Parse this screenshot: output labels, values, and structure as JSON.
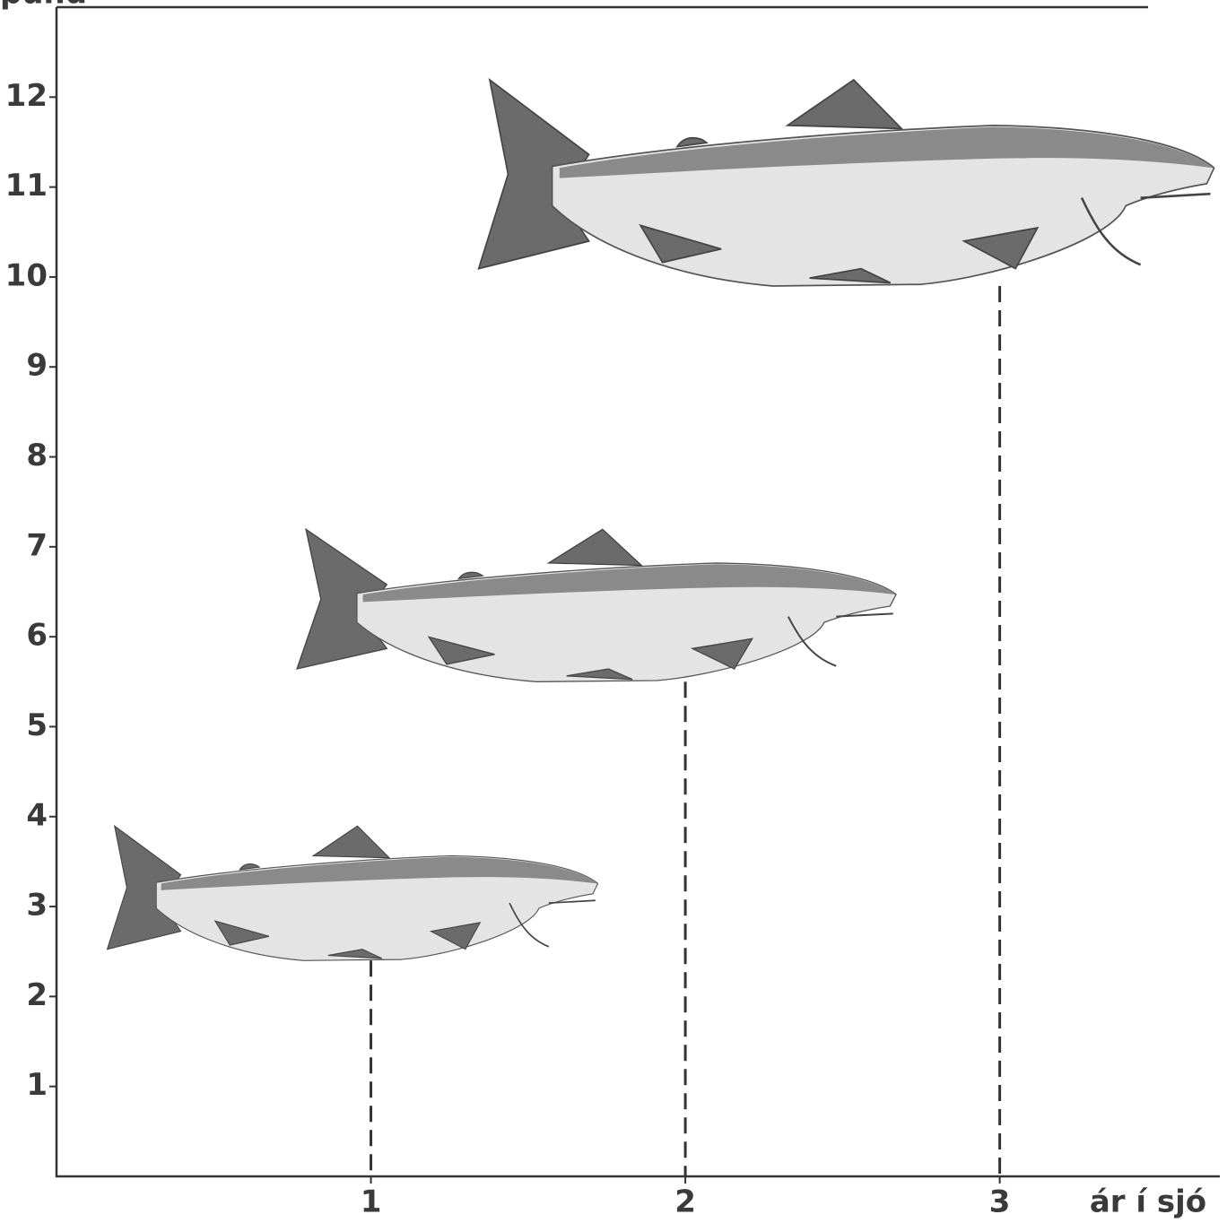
{
  "chart_data": {
    "type": "fish-drop",
    "y_label": "pund",
    "x_label": "ár í sjó",
    "x": [
      1,
      2,
      3
    ],
    "values": [
      2.4,
      5.5,
      9.9
    ],
    "xlim": [
      0,
      3.7
    ],
    "ylim": [
      0,
      13
    ],
    "xticks": [
      1,
      2,
      3
    ],
    "yticks": [
      1,
      2,
      3,
      4,
      5,
      6,
      7,
      8,
      9,
      10,
      11,
      12
    ]
  }
}
